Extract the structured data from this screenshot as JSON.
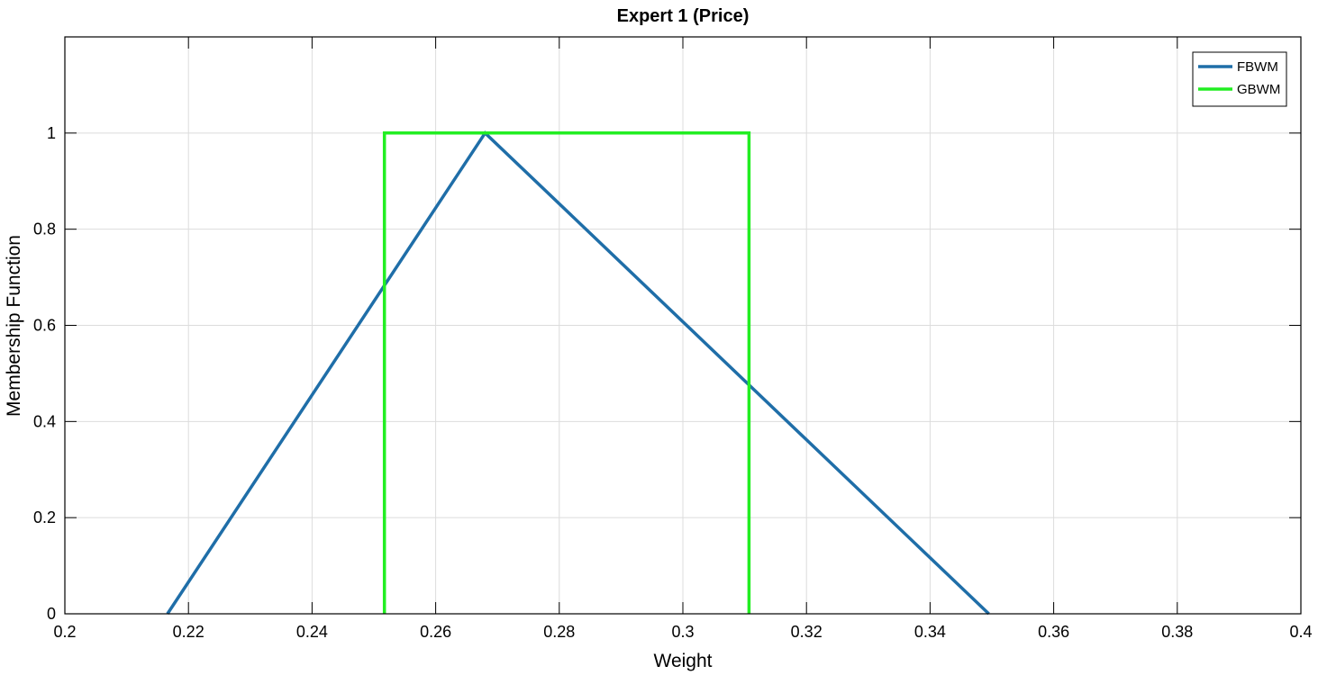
{
  "chart_data": {
    "type": "line",
    "title": "Expert 1 (Price)",
    "xlabel": "Weight",
    "ylabel": "Membership Function",
    "xlim": [
      0.2,
      0.4
    ],
    "ylim": [
      0,
      1.2
    ],
    "xticks": [
      0.2,
      0.22,
      0.24,
      0.26,
      0.28,
      0.3,
      0.32,
      0.34,
      0.36,
      0.38,
      0.4
    ],
    "xtick_labels": [
      "0.2",
      "0.22",
      "0.24",
      "0.26",
      "0.28",
      "0.3",
      "0.32",
      "0.34",
      "0.36",
      "0.38",
      "0.4"
    ],
    "yticks": [
      0,
      0.2,
      0.4,
      0.6,
      0.8,
      1
    ],
    "ytick_labels": [
      "0",
      "0.2",
      "0.4",
      "0.6",
      "0.8",
      "1"
    ],
    "grid": true,
    "legend_position": "top-right",
    "series": [
      {
        "name": "FBWM",
        "color": "#1f6ea8",
        "points": [
          [
            0.2166,
            0
          ],
          [
            0.268,
            1
          ],
          [
            0.3495,
            0
          ]
        ]
      },
      {
        "name": "GBWM",
        "color": "#22ee22",
        "points": [
          [
            0.2517,
            0
          ],
          [
            0.2517,
            1
          ],
          [
            0.3107,
            1
          ],
          [
            0.3107,
            0
          ]
        ]
      }
    ]
  }
}
